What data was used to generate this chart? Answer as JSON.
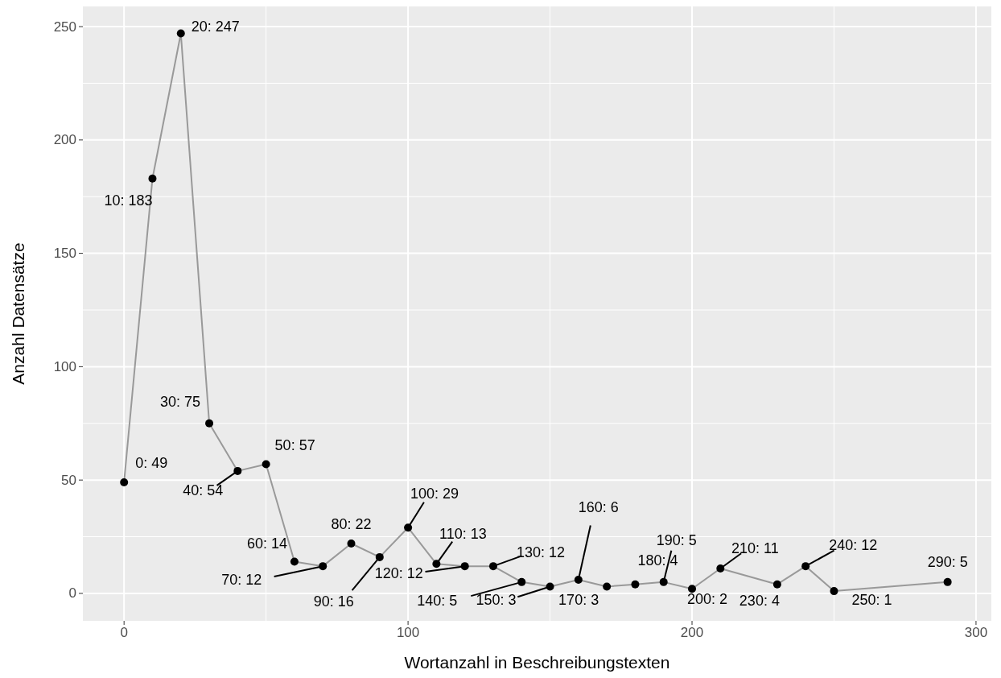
{
  "chart_data": {
    "type": "line",
    "xlabel": "Wortanzahl in Beschreibungstexten",
    "ylabel": "Anzahl Datensätze",
    "x": [
      0,
      10,
      20,
      30,
      40,
      50,
      60,
      70,
      80,
      90,
      100,
      110,
      120,
      130,
      140,
      150,
      160,
      170,
      180,
      190,
      200,
      210,
      230,
      240,
      250,
      290
    ],
    "series": [
      {
        "color": "#999999",
        "values": [
          49,
          183,
          247,
          75,
          54,
          57,
          14,
          12,
          22,
          16,
          29,
          13,
          12,
          12,
          5,
          3,
          6,
          3,
          4,
          5,
          2,
          11,
          4,
          12,
          1,
          5
        ],
        "value_labels": [
          "0: 49",
          "10: 183",
          "20: 247",
          "30: 75",
          "40: 54",
          "50: 57",
          "60: 14",
          "70: 12",
          "80: 22",
          "90: 16",
          "100: 29",
          "110: 13",
          "120: 12",
          "130: 12",
          "140: 5",
          "150: 3",
          "160: 6",
          "170: 3",
          "180: 4",
          "190: 5",
          "200: 2",
          "210: 11",
          "230: 4",
          "240: 12",
          "250: 1",
          "290: 5"
        ]
      }
    ],
    "marker": "circle",
    "xlim": [
      -14.5,
      305.4
    ],
    "ylim": [
      -12.1,
      258.9
    ],
    "xticks": [
      0,
      100,
      200,
      300
    ],
    "yticks": [
      0,
      50,
      100,
      150,
      200,
      250
    ],
    "grid": true
  }
}
